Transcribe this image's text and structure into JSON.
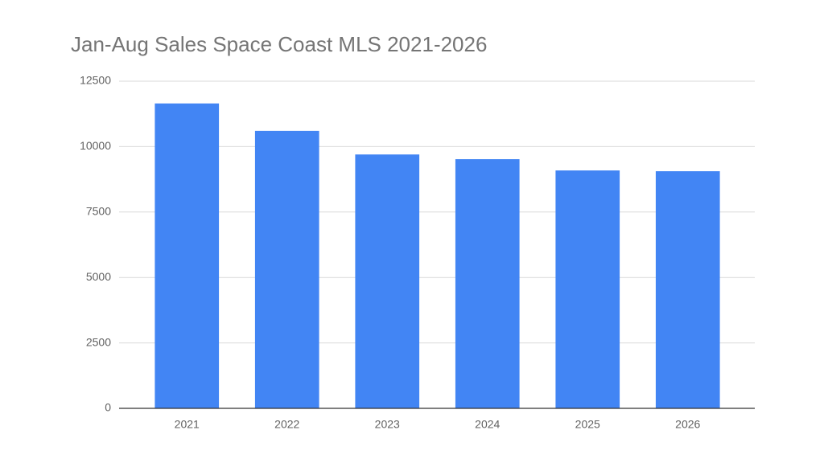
{
  "chart_data": {
    "type": "bar",
    "title": "Jan-Aug Sales Space Coast MLS 2021-2026",
    "categories": [
      "2021",
      "2022",
      "2023",
      "2024",
      "2025",
      "2026"
    ],
    "values": [
      11650,
      10600,
      9700,
      9520,
      9090,
      9060
    ],
    "color": "#4285f4",
    "ylim": [
      0,
      12500
    ],
    "yticks": [
      0,
      2500,
      5000,
      7500,
      10000,
      12500
    ],
    "grid": true
  }
}
